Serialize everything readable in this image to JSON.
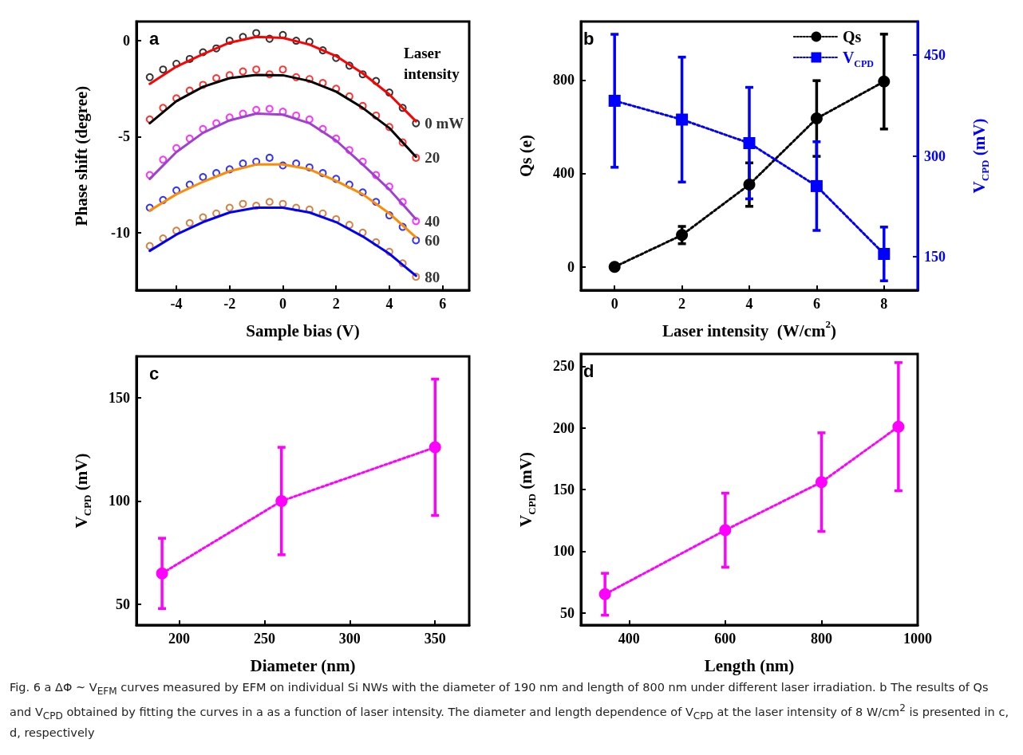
{
  "chart_data": [
    {
      "type": "scatter",
      "xlabel": "Sample bias (V)",
      "ylabel": "Phase shift (degree)",
      "xlim": [
        -5.5,
        7
      ],
      "ylim": [
        -13,
        1
      ],
      "xticks": [
        -4,
        -2,
        0,
        2,
        4,
        6
      ],
      "yticks": [
        -10,
        -5,
        0
      ],
      "marker": "circle",
      "line_style": "solid",
      "annotations": [
        "a",
        "Laser intensity"
      ],
      "series": [
        {
          "type": "scatter",
          "name": "0 mW",
          "color": "#000000",
          "x": [
            -5,
            -4.5,
            -4,
            -3.5,
            -3,
            -2.5,
            -2,
            -1.5,
            -1,
            -0.5,
            0,
            0.5,
            1,
            1.5,
            2,
            2.5,
            3,
            3.5,
            4,
            4.5,
            5
          ],
          "values": [
            -1.9,
            -1.5,
            -1.2,
            -0.95,
            -0.6,
            -0.4,
            0.0,
            0.2,
            0.4,
            0.1,
            0.3,
            0.0,
            -0.05,
            -0.5,
            -0.9,
            -1.3,
            -1.75,
            -2.1,
            -2.7,
            -3.5,
            -4.3
          ]
        },
        {
          "type": "scatter",
          "name": "20",
          "color": "#ff0000",
          "x": [
            -5,
            -4.5,
            -4,
            -3.5,
            -3,
            -2.5,
            -2,
            -1.5,
            -1,
            -0.5,
            0,
            0.5,
            1,
            1.5,
            2,
            2.5,
            3,
            3.5,
            4,
            4.5,
            5
          ],
          "values": [
            -4.1,
            -3.5,
            -3.0,
            -2.6,
            -2.3,
            -1.95,
            -1.8,
            -1.6,
            -1.5,
            -1.75,
            -1.5,
            -1.9,
            -2.0,
            -2.2,
            -2.5,
            -2.9,
            -3.4,
            -3.9,
            -4.5,
            -5.3,
            -6.1
          ]
        },
        {
          "type": "scatter",
          "name": "40",
          "color": "#ff00ff",
          "x": [
            -5,
            -4.5,
            -4,
            -3.5,
            -3,
            -2.5,
            -2,
            -1.5,
            -1,
            -0.5,
            0,
            0.5,
            1,
            1.5,
            2,
            2.5,
            3,
            3.5,
            4,
            4.5,
            5
          ],
          "values": [
            -7.0,
            -6.2,
            -5.6,
            -5.1,
            -4.6,
            -4.3,
            -4.0,
            -3.8,
            -3.6,
            -3.55,
            -3.7,
            -3.9,
            -4.1,
            -4.6,
            -5.1,
            -5.7,
            -6.3,
            -7.0,
            -7.6,
            -8.4,
            -9.4
          ]
        },
        {
          "type": "scatter",
          "name": "60",
          "color": "#0000ff",
          "x": [
            -5,
            -4.5,
            -4,
            -3.5,
            -3,
            -2.5,
            -2,
            -1.5,
            -1,
            -0.5,
            0,
            0.5,
            1,
            1.5,
            2,
            2.5,
            3,
            3.5,
            4,
            4.5,
            5
          ],
          "values": [
            -8.7,
            -8.3,
            -7.8,
            -7.5,
            -7.1,
            -6.9,
            -6.7,
            -6.4,
            -6.3,
            -6.1,
            -6.5,
            -6.4,
            -6.6,
            -6.9,
            -7.2,
            -7.5,
            -7.9,
            -8.4,
            -9.1,
            -9.7,
            -10.4
          ]
        },
        {
          "type": "scatter",
          "name": "80",
          "color": "#c86414",
          "x": [
            -5,
            -4.5,
            -4,
            -3.5,
            -3,
            -2.5,
            -2,
            -1.5,
            -1,
            -0.5,
            0,
            0.5,
            1,
            1.5,
            2,
            2.5,
            3,
            3.5,
            4,
            4.5,
            5
          ],
          "values": [
            -10.7,
            -10.3,
            -9.9,
            -9.5,
            -9.2,
            -9.0,
            -8.7,
            -8.5,
            -8.6,
            -8.4,
            -8.5,
            -8.7,
            -8.8,
            -9.0,
            -9.3,
            -9.6,
            -10.0,
            -10.5,
            -11.0,
            -11.6,
            -12.3
          ]
        },
        {
          "type": "line",
          "marker": "none",
          "color": "#ff0000",
          "x": [
            -5,
            -4,
            -3,
            -2,
            -1,
            0,
            1,
            2,
            3,
            4,
            5
          ],
          "values": [
            -2.25,
            -1.35,
            -0.7,
            -0.1,
            0.2,
            0.15,
            -0.2,
            -0.8,
            -1.7,
            -2.8,
            -4.2
          ]
        },
        {
          "type": "line",
          "marker": "none",
          "color": "#000000",
          "x": [
            -5,
            -4,
            -3,
            -2,
            -1,
            0,
            1,
            2,
            3,
            4,
            5
          ],
          "values": [
            -4.3,
            -3.15,
            -2.4,
            -1.95,
            -1.78,
            -1.8,
            -2.1,
            -2.65,
            -3.5,
            -4.55,
            -6.05
          ]
        },
        {
          "type": "line",
          "marker": "none",
          "color": "#a040d0",
          "x": [
            -5,
            -4,
            -3,
            -2,
            -1,
            0,
            1,
            2,
            3,
            4,
            5
          ],
          "values": [
            -7.2,
            -5.8,
            -4.8,
            -4.15,
            -3.8,
            -3.85,
            -4.3,
            -5.2,
            -6.45,
            -7.75,
            -9.3
          ]
        },
        {
          "type": "line",
          "marker": "none",
          "color": "#ff8c00",
          "x": [
            -5,
            -4,
            -3,
            -2,
            -1,
            0,
            1,
            2,
            3,
            4,
            5
          ],
          "values": [
            -8.85,
            -8.0,
            -7.35,
            -6.8,
            -6.45,
            -6.45,
            -6.7,
            -7.3,
            -8.0,
            -9.0,
            -10.25
          ]
        },
        {
          "type": "line",
          "marker": "none",
          "color": "#0000ff",
          "x": [
            -5,
            -4,
            -3,
            -2,
            -1,
            0,
            1,
            2,
            3,
            4,
            5
          ],
          "values": [
            -10.95,
            -10.1,
            -9.45,
            -8.95,
            -8.7,
            -8.7,
            -8.95,
            -9.45,
            -10.2,
            -11.1,
            -12.25
          ]
        }
      ]
    },
    {
      "type": "line",
      "xlabel": "Laser intensity  (W/cm$^{2}$)",
      "ylabel": "Qs (e)",
      "y2label": "V$_{CPD}$ (mV)",
      "x": [
        0,
        2,
        4,
        6,
        8
      ],
      "xlim": [
        -1,
        9
      ],
      "ylim": [
        -100,
        1050
      ],
      "y2lim": [
        100,
        500
      ],
      "xticks": [
        0,
        2,
        4,
        6,
        8
      ],
      "yticks": [
        0,
        400,
        800
      ],
      "y2ticks": [
        150,
        300,
        450
      ],
      "line_style": "dotted",
      "legend": "top right",
      "annotations": [
        "b"
      ],
      "series": [
        {
          "name": "Qs",
          "color": "#000000",
          "marker": "circle",
          "values": [
            0,
            136,
            352,
            635,
            793
          ],
          "errors": [
            null,
            37,
            93,
            162,
            203
          ]
        },
        {
          "name": "V$_{CPD}$",
          "color": "#0000ff",
          "marker": "square",
          "axis": "y2",
          "values": [
            382,
            354,
            319,
            255,
            154
          ],
          "errors": [
            99,
            93,
            83,
            66,
            40
          ]
        }
      ]
    },
    {
      "type": "line",
      "xlabel": "Diameter (nm)",
      "ylabel": "V$_{CPD}$ (mV)",
      "x": [
        190,
        260,
        350
      ],
      "xlim": [
        175,
        370
      ],
      "ylim": [
        40,
        170
      ],
      "xticks": [
        200,
        250,
        300,
        350
      ],
      "yticks": [
        50,
        100,
        150
      ],
      "line_style": "dotted",
      "marker": "circle",
      "annotations": [
        "c"
      ],
      "series": [
        {
          "color": "#ff00ff",
          "values": [
            65,
            100,
            126
          ],
          "errors": [
            17,
            26,
            33
          ]
        }
      ]
    },
    {
      "type": "line",
      "xlabel": "Length (nm)",
      "ylabel": "V$_{CPD}$ (mV)",
      "x": [
        350,
        600,
        800,
        960
      ],
      "xlim": [
        300,
        1000
      ],
      "ylim": [
        40,
        260
      ],
      "xticks": [
        400,
        600,
        800,
        1000
      ],
      "yticks": [
        50,
        100,
        150,
        200,
        250
      ],
      "line_style": "dotted",
      "marker": "circle",
      "annotations": [
        "d"
      ],
      "series": [
        {
          "color": "#ff00ff",
          "values": [
            65,
            117,
            156,
            201
          ],
          "errors": [
            17,
            30,
            40,
            52
          ]
        }
      ]
    },
    {
      "type": "other",
      "annotations": [
        "Fig. 6  a ΔΦ ~ V$_{EFM}$ curves measured by EFM on individual Si NWs with the diameter of 190 nm and length of 800 nm under different laser irradiation. b The results of Qs and V$_{CPD}$ obtained by fitting the curves in a as a function of laser intensity. The diameter and length dependence of V$_{CPD}$ at the laser intensity of 8 W/cm$^{2}$ is presented in c, d, respectively"
      ]
    }
  ]
}
